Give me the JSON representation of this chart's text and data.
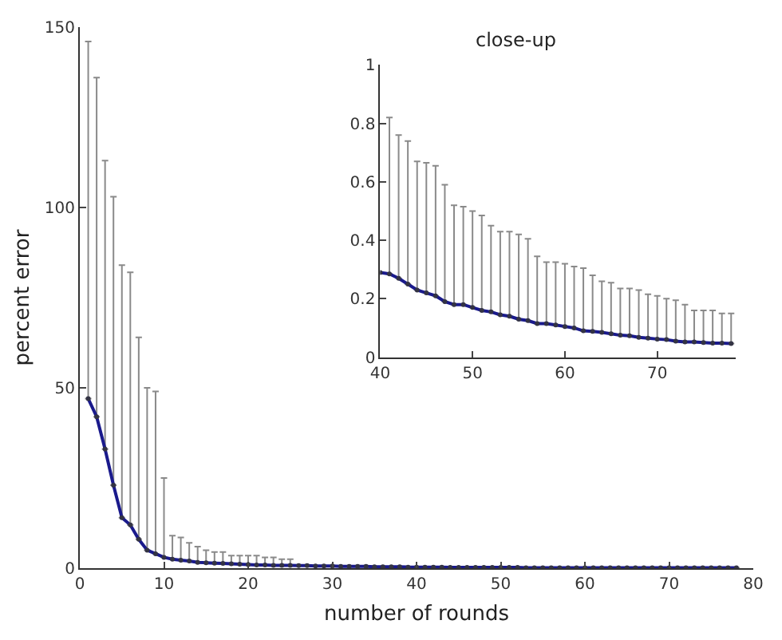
{
  "chart_data": [
    {
      "type": "line",
      "xlabel": "number of rounds",
      "ylabel": "percent error",
      "xlim": [
        0,
        80
      ],
      "xticks": [
        0,
        10,
        20,
        30,
        40,
        50,
        60,
        70,
        80
      ],
      "ylim": [
        0,
        150
      ],
      "yticks": [
        0,
        50,
        100,
        150
      ],
      "marker": "circle",
      "line_style": "solid",
      "series": [
        {
          "color": "#1a1a8c",
          "x": [
            1,
            2,
            3,
            4,
            5,
            6,
            7,
            8,
            9,
            10,
            11,
            12,
            13,
            14,
            15,
            16,
            17,
            18,
            19,
            20,
            21,
            22,
            23,
            24,
            25,
            26,
            27,
            28,
            29,
            30,
            31,
            32,
            33,
            34,
            35,
            36,
            37,
            38,
            39,
            40,
            41,
            42,
            43,
            44,
            45,
            46,
            47,
            48,
            49,
            50,
            51,
            52,
            53,
            54,
            55,
            56,
            57,
            58,
            59,
            60,
            61,
            62,
            63,
            64,
            65,
            66,
            67,
            68,
            69,
            70,
            71,
            72,
            73,
            74,
            75,
            76,
            77,
            78
          ],
          "values": [
            47,
            42,
            33,
            23,
            14,
            12,
            8,
            5,
            4,
            3,
            2.5,
            2.2,
            2,
            1.6,
            1.5,
            1.4,
            1.3,
            1.2,
            1.1,
            1.0,
            0.9,
            0.9,
            0.8,
            0.8,
            0.8,
            0.7,
            0.7,
            0.6,
            0.6,
            0.6,
            0.5,
            0.5,
            0.5,
            0.5,
            0.4,
            0.4,
            0.4,
            0.4,
            0.3,
            0.3,
            0.3,
            0.3,
            0.3,
            0.2,
            0.2,
            0.2,
            0.2,
            0.2,
            0.2,
            0.2,
            0.2,
            0.2,
            0.1,
            0.1,
            0.1,
            0.1,
            0.1,
            0.1,
            0.1,
            0.1,
            0.1,
            0.1,
            0.1,
            0.1,
            0.1,
            0.1,
            0.1,
            0.1,
            0.1,
            0.1,
            0.1,
            0.1,
            0.1,
            0.1,
            0.1,
            0.1,
            0.1,
            0.1
          ],
          "errors": [
            [
              47,
              146
            ],
            [
              42,
              136
            ],
            [
              33,
              113
            ],
            [
              23,
              103
            ],
            [
              14,
              84
            ],
            [
              12,
              82
            ],
            [
              8,
              64
            ],
            [
              5,
              50
            ],
            [
              4,
              49
            ],
            [
              3,
              25
            ],
            [
              2.5,
              9
            ],
            [
              2.2,
              8.5
            ],
            [
              2,
              7
            ],
            [
              1.6,
              6
            ],
            [
              1.5,
              5
            ],
            [
              1.4,
              4.5
            ],
            [
              1.3,
              4.5
            ],
            [
              1.2,
              3.5
            ],
            [
              1.1,
              3.5
            ],
            [
              1.0,
              3.5
            ],
            [
              0.9,
              3.5
            ],
            [
              0.9,
              3
            ],
            [
              0.8,
              3
            ],
            [
              0.8,
              2.5
            ],
            [
              0.8,
              2.5
            ],
            null,
            null,
            null,
            null,
            null,
            null,
            null,
            null,
            null,
            null,
            null,
            null,
            null,
            null,
            null,
            null,
            null,
            null,
            null,
            null,
            null,
            null,
            null,
            null,
            null,
            null,
            null,
            null,
            null,
            null,
            null,
            null,
            null,
            null,
            null,
            null,
            null,
            null,
            null,
            null,
            null,
            null,
            null,
            null,
            null,
            null,
            null,
            null,
            null,
            null,
            null,
            null,
            null
          ]
        }
      ]
    },
    {
      "type": "line",
      "title": "close-up",
      "xlim": [
        40,
        78.5
      ],
      "xticks": [
        40,
        50,
        60,
        70
      ],
      "ylim": [
        0,
        1
      ],
      "yticks": [
        0,
        0.2,
        0.4,
        0.6,
        0.8,
        1
      ],
      "marker": "circle",
      "line_style": "solid",
      "series": [
        {
          "color": "#1a1a8c",
          "x": [
            40,
            41,
            42,
            43,
            44,
            45,
            46,
            47,
            48,
            49,
            50,
            51,
            52,
            53,
            54,
            55,
            56,
            57,
            58,
            59,
            60,
            61,
            62,
            63,
            64,
            65,
            66,
            67,
            68,
            69,
            70,
            71,
            72,
            73,
            74,
            75,
            76,
            77,
            78
          ],
          "values": [
            0.29,
            0.285,
            0.27,
            0.25,
            0.23,
            0.22,
            0.21,
            0.19,
            0.18,
            0.18,
            0.17,
            0.16,
            0.155,
            0.145,
            0.14,
            0.13,
            0.125,
            0.115,
            0.115,
            0.11,
            0.105,
            0.1,
            0.09,
            0.088,
            0.085,
            0.08,
            0.075,
            0.073,
            0.068,
            0.065,
            0.062,
            0.06,
            0.055,
            0.052,
            0.052,
            0.05,
            0.048,
            0.048,
            0.047
          ],
          "errors": [
            null,
            [
              0.285,
              0.82
            ],
            [
              0.27,
              0.76
            ],
            [
              0.25,
              0.74
            ],
            [
              0.23,
              0.67
            ],
            [
              0.22,
              0.665
            ],
            [
              0.21,
              0.655
            ],
            [
              0.19,
              0.59
            ],
            [
              0.18,
              0.52
            ],
            [
              0.18,
              0.515
            ],
            [
              0.17,
              0.5
            ],
            [
              0.16,
              0.485
            ],
            [
              0.155,
              0.45
            ],
            [
              0.145,
              0.43
            ],
            [
              0.14,
              0.43
            ],
            [
              0.13,
              0.42
            ],
            [
              0.125,
              0.405
            ],
            [
              0.115,
              0.345
            ],
            [
              0.115,
              0.325
            ],
            [
              0.11,
              0.325
            ],
            [
              0.105,
              0.32
            ],
            [
              0.1,
              0.31
            ],
            [
              0.09,
              0.305
            ],
            [
              0.088,
              0.28
            ],
            [
              0.085,
              0.26
            ],
            [
              0.08,
              0.255
            ],
            [
              0.075,
              0.235
            ],
            [
              0.073,
              0.235
            ],
            [
              0.068,
              0.23
            ],
            [
              0.065,
              0.215
            ],
            [
              0.062,
              0.21
            ],
            [
              0.06,
              0.2
            ],
            [
              0.055,
              0.195
            ],
            [
              0.052,
              0.18
            ],
            [
              0.052,
              0.16
            ],
            [
              0.05,
              0.16
            ],
            [
              0.048,
              0.16
            ],
            [
              0.048,
              0.15
            ],
            [
              0.047,
              0.15
            ]
          ]
        }
      ]
    }
  ]
}
